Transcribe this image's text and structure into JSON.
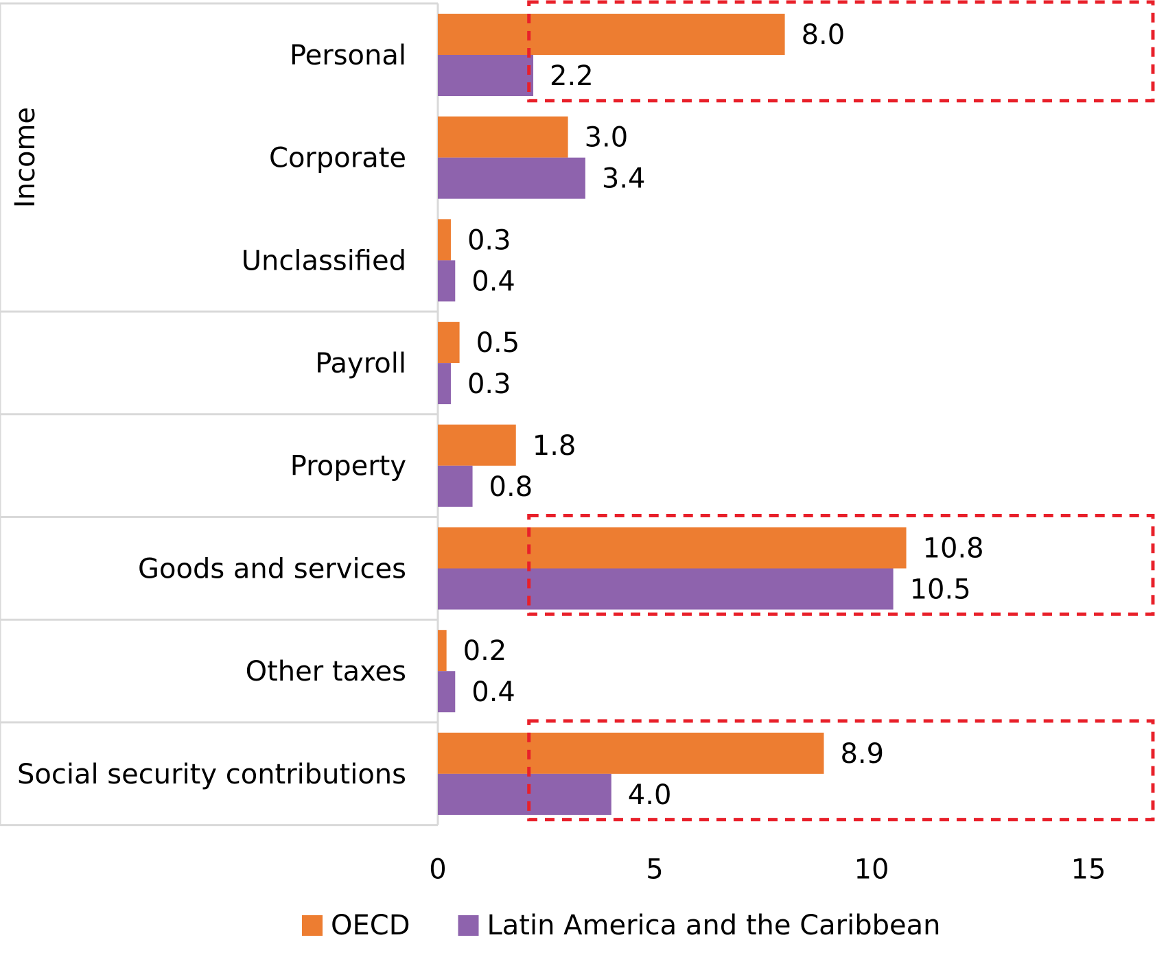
{
  "chart_data": {
    "type": "bar",
    "orientation": "horizontal",
    "title": "",
    "xlabel": "",
    "ylabel": "",
    "xlim": [
      0,
      16.5
    ],
    "xticks": [
      0,
      5,
      10,
      15
    ],
    "grid": false,
    "legend_position": "bottom",
    "categories": [
      "Personal",
      "Corporate",
      "Unclassified",
      "Payroll",
      "Property",
      "Goods and services",
      "Other taxes",
      "Social security contributions"
    ],
    "groups": [
      {
        "label": "Income",
        "start": 0,
        "end": 2
      },
      {
        "label": "",
        "start": 3,
        "end": 3
      },
      {
        "label": "",
        "start": 4,
        "end": 4
      },
      {
        "label": "",
        "start": 5,
        "end": 5
      },
      {
        "label": "",
        "start": 6,
        "end": 6
      },
      {
        "label": "",
        "start": 7,
        "end": 7
      }
    ],
    "series": [
      {
        "name": "OECD",
        "color": "#ed7d31",
        "values": [
          8.0,
          3.0,
          0.3,
          0.5,
          1.8,
          10.8,
          0.2,
          8.9
        ]
      },
      {
        "name": "Latin America and the Caribbean",
        "color": "#8e63ad",
        "values": [
          2.2,
          3.4,
          0.4,
          0.3,
          0.8,
          10.5,
          0.4,
          4.0
        ]
      }
    ],
    "value_labels": [
      [
        "8.0",
        "3.0",
        "0.3",
        "0.5",
        "1.8",
        "10.8",
        "0.2",
        "8.9"
      ],
      [
        "2.2",
        "3.4",
        "0.4",
        "0.3",
        "0.8",
        "10.5",
        "0.4",
        "4.0"
      ]
    ],
    "highlights": [
      {
        "category_index": 0,
        "x_from": 2.1,
        "x_to": 16.5
      },
      {
        "category_index": 5,
        "x_from": 2.1,
        "x_to": 16.5
      },
      {
        "category_index": 7,
        "x_from": 2.1,
        "x_to": 16.5
      }
    ],
    "highlight_color": "#e8202a"
  }
}
